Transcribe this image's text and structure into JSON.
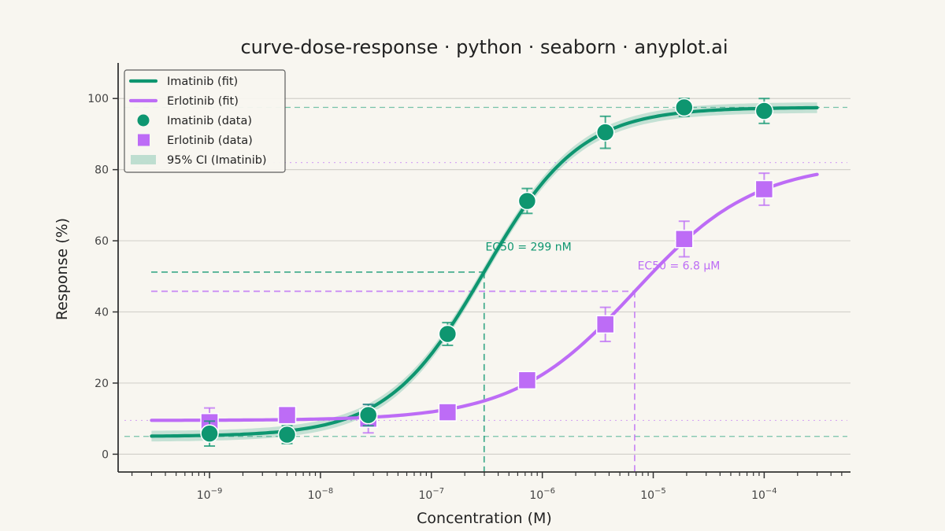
{
  "chart_data": {
    "type": "line",
    "title": "curve-dose-response · python · seaborn · anyplot.ai",
    "xlabel": "Concentration (M)",
    "ylabel": "Response (%)",
    "x_scale": "log",
    "xlim": [
      1.5e-10,
      0.0006
    ],
    "ylim": [
      -5,
      110
    ],
    "y_ticks": [
      0,
      20,
      40,
      60,
      80,
      100
    ],
    "x_ticks": [
      1e-09,
      1e-08,
      1e-07,
      1e-06,
      1e-05,
      0.0001
    ],
    "x_tick_labels": [
      {
        "base": "10",
        "exp": "−9"
      },
      {
        "base": "10",
        "exp": "−8"
      },
      {
        "base": "10",
        "exp": "−7"
      },
      {
        "base": "10",
        "exp": "−6"
      },
      {
        "base": "10",
        "exp": "−5"
      },
      {
        "base": "10",
        "exp": "−4"
      }
    ],
    "grid": "horizontal",
    "legend_position": "top-left",
    "colors": {
      "imatinib": "#0E9670",
      "erlotinib": "#BD6CF6",
      "axis": "#333333",
      "grid": "#D4D2CC",
      "background": "#F8F6F0"
    },
    "series": [
      {
        "name": "Imatinib",
        "fit": {
          "bottom": 5,
          "top": 97.5,
          "ec50": 2.99e-07,
          "hill": 1.0,
          "x_range": [
            3e-10,
            0.0003
          ]
        },
        "ci_halfwidth": 1.5,
        "data": [
          {
            "x": 1e-09,
            "y": 5.8,
            "err": 3.5
          },
          {
            "x": 5e-09,
            "y": 5.5,
            "err": 2.5
          },
          {
            "x": 2.7e-08,
            "y": 11.0,
            "err": 3.0
          },
          {
            "x": 1.4e-07,
            "y": 33.8,
            "err": 3.2
          },
          {
            "x": 7.3e-07,
            "y": 71.2,
            "err": 3.5
          },
          {
            "x": 3.7e-06,
            "y": 90.5,
            "err": 4.5
          },
          {
            "x": 1.9e-05,
            "y": 97.5,
            "err": 2.5
          },
          {
            "x": 0.0001,
            "y": 96.5,
            "err": 3.5
          }
        ],
        "baseline": 5,
        "plateau": 97.5
      },
      {
        "name": "Erlotinib",
        "fit": {
          "bottom": 9.5,
          "top": 82,
          "ec50": 6.8e-06,
          "hill": 0.8,
          "x_range": [
            3e-10,
            0.0003
          ]
        },
        "data": [
          {
            "x": 1e-09,
            "y": 9.0,
            "err": 4.0
          },
          {
            "x": 5e-09,
            "y": 11.0,
            "err": 0
          },
          {
            "x": 2.7e-08,
            "y": 10.0,
            "err": 4.0
          },
          {
            "x": 1.4e-07,
            "y": 11.8,
            "err": 0
          },
          {
            "x": 7.3e-07,
            "y": 20.8,
            "err": 0
          },
          {
            "x": 3.7e-06,
            "y": 36.5,
            "err": 4.8
          },
          {
            "x": 1.9e-05,
            "y": 60.5,
            "err": 5.0
          },
          {
            "x": 0.0001,
            "y": 74.5,
            "err": 4.5
          }
        ],
        "baseline": 9.5,
        "plateau": 82
      }
    ],
    "ec50_markers": [
      {
        "series": "Imatinib",
        "x": 2.99e-07,
        "y": 51.2
      },
      {
        "series": "Erlotinib",
        "x": 6.8e-06,
        "y": 45.8
      }
    ],
    "annotations": [
      {
        "text": "EC50 = 299 nM",
        "series": "Imatinib",
        "x": 7.5e-07,
        "y": 57.2
      },
      {
        "text": "EC50 = 6.8 μM",
        "series": "Erlotinib",
        "x": 1.7e-05,
        "y": 52.0
      }
    ],
    "legend": [
      {
        "label": "Imatinib (fit)",
        "kind": "line",
        "series": "imatinib"
      },
      {
        "label": "Erlotinib (fit)",
        "kind": "line",
        "series": "erlotinib"
      },
      {
        "label": "Imatinib (data)",
        "kind": "circle",
        "series": "imatinib"
      },
      {
        "label": "Erlotinib (data)",
        "kind": "square",
        "series": "erlotinib"
      },
      {
        "label": "95% CI (Imatinib)",
        "kind": "band",
        "series": "imatinib"
      }
    ]
  }
}
